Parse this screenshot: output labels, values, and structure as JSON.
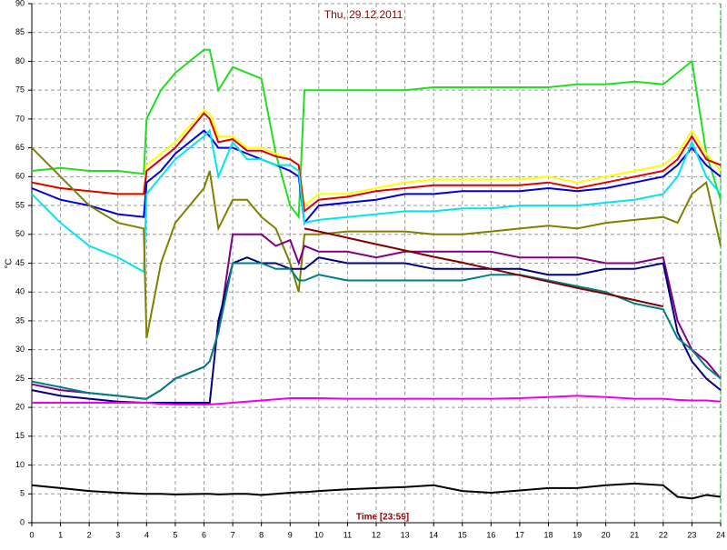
{
  "chart_data": {
    "type": "line",
    "title": "Thu, 29.12.2011",
    "x_label": "Time [23:59]",
    "y_label": "°C",
    "x": [
      0,
      1,
      2,
      3,
      3.9,
      4,
      4.5,
      5,
      6,
      6.2,
      6.5,
      7,
      7.5,
      8,
      8.5,
      9,
      9.3,
      9.5,
      10,
      11,
      12,
      13,
      14,
      15,
      16,
      17,
      18,
      19,
      20,
      21,
      22,
      22.5,
      23,
      23.5,
      24
    ],
    "series": [
      {
        "color": "#22dd22",
        "values": [
          61,
          61.5,
          61,
          61,
          60.5,
          70,
          75,
          78,
          82,
          82,
          75,
          79,
          78,
          77,
          64,
          55,
          53,
          75,
          75,
          75,
          75,
          75,
          75.5,
          75.5,
          75.5,
          75.5,
          75.5,
          76,
          76,
          76.5,
          76,
          78,
          80,
          64,
          56
        ]
      },
      {
        "color": "#ffff00",
        "values": [
          59,
          58,
          57.5,
          57,
          57,
          62,
          64,
          66,
          71.5,
          71,
          67,
          67,
          65,
          65,
          64,
          63,
          62,
          55,
          57,
          57,
          58,
          59,
          59.5,
          59.5,
          59.5,
          59.5,
          60,
          59,
          60,
          61,
          62,
          64,
          68,
          64,
          61
        ]
      },
      {
        "color": "#dd0000",
        "values": [
          59,
          58,
          57.5,
          57,
          57,
          61,
          63,
          65,
          71,
          70,
          66,
          66.5,
          64.5,
          64.5,
          63.5,
          63,
          62,
          54,
          56,
          56.5,
          57.5,
          58,
          58.5,
          58.5,
          58.5,
          58.5,
          59,
          58,
          59,
          60,
          61,
          63,
          67,
          63,
          62
        ]
      },
      {
        "color": "#0000dd",
        "values": [
          58,
          56,
          55,
          53.5,
          53,
          59,
          61,
          64,
          68,
          67,
          65,
          65,
          64,
          63,
          62,
          61,
          60,
          52,
          55,
          55.5,
          56,
          57,
          57,
          57.5,
          57.5,
          57.5,
          58,
          57.5,
          58,
          59,
          60,
          62,
          65,
          62,
          60
        ]
      },
      {
        "color": "#00e5ee",
        "values": [
          57,
          52,
          48,
          46,
          43.5,
          57,
          60,
          63,
          67,
          68,
          60,
          66,
          63,
          63,
          62,
          62,
          61,
          52,
          52.5,
          53,
          53.5,
          54,
          54,
          54.5,
          54.5,
          55,
          55,
          55,
          55.5,
          56,
          57,
          60,
          66,
          60,
          57
        ]
      },
      {
        "color": "#808000",
        "values": [
          65,
          60,
          55,
          52,
          51,
          32,
          45,
          52,
          58,
          61,
          51,
          56,
          56,
          53,
          51,
          45,
          40,
          50,
          50,
          50.5,
          50.5,
          50.5,
          50,
          50,
          50.5,
          51,
          51.5,
          51,
          52,
          52.5,
          53,
          52,
          57,
          59,
          48
        ]
      },
      {
        "color": "#800080",
        "values": [
          24,
          23,
          22.5,
          22,
          21.5,
          21.5,
          23,
          25,
          27,
          28,
          33,
          50,
          50,
          50,
          48,
          49,
          45,
          48,
          47,
          47,
          46,
          47,
          47,
          47,
          47,
          46,
          46,
          46,
          45,
          45,
          46,
          35,
          30,
          28,
          25
        ]
      },
      {
        "color": "#000080",
        "values": [
          23,
          22,
          21.5,
          21,
          20.8,
          20.8,
          20.8,
          20.8,
          20.8,
          20.8,
          35,
          45,
          46,
          45,
          45,
          44,
          44,
          44,
          46,
          45,
          45,
          45,
          44,
          44,
          44,
          44,
          43,
          43,
          44,
          44,
          45,
          33,
          28,
          25,
          23
        ]
      },
      {
        "color": "#008080",
        "values": [
          24.5,
          23.5,
          22.5,
          22,
          21.5,
          21.5,
          23,
          25,
          27,
          28,
          33,
          45,
          45,
          45,
          44,
          44,
          42,
          42,
          43,
          42,
          42,
          42,
          42,
          42,
          43,
          43,
          42,
          41,
          40,
          38,
          37,
          32,
          30,
          27,
          25
        ]
      },
      {
        "color": "#ee00ee",
        "values": [
          20.8,
          20.8,
          20.8,
          20.8,
          20.8,
          20.8,
          20.6,
          20.5,
          20.5,
          20.5,
          20.6,
          20.8,
          21,
          21.2,
          21.4,
          21.6,
          21.6,
          21.6,
          21.6,
          21.5,
          21.5,
          21.5,
          21.5,
          21.5,
          21.5,
          21.6,
          21.8,
          22,
          21.8,
          21.5,
          21.5,
          21.3,
          21.2,
          21.2,
          21
        ]
      },
      {
        "color": "#000000",
        "values": [
          6.5,
          6,
          5.5,
          5.2,
          5,
          5,
          5,
          4.9,
          5,
          5,
          4.9,
          5,
          5,
          4.8,
          5,
          5.2,
          5.3,
          5.3,
          5.5,
          5.8,
          6,
          6.2,
          6.5,
          5.5,
          5.2,
          5.6,
          6,
          6,
          6.5,
          6.8,
          6.5,
          4.5,
          4.2,
          4.8,
          4.5
        ]
      },
      {
        "color": "#800000",
        "values": [
          null,
          null,
          null,
          null,
          null,
          null,
          null,
          null,
          null,
          null,
          null,
          null,
          null,
          null,
          null,
          null,
          null,
          51,
          50.5,
          49.4,
          48.3,
          47.2,
          46.1,
          45.1,
          44,
          42.9,
          41.8,
          40.7,
          39.7,
          38.6,
          37.5,
          null,
          null,
          null,
          null
        ]
      }
    ],
    "xlim": [
      0,
      24
    ],
    "ylim": [
      0,
      90
    ],
    "xticks": [
      0,
      1,
      2,
      3,
      4,
      5,
      6,
      7,
      8,
      9,
      10,
      11,
      12,
      13,
      14,
      15,
      16,
      17,
      18,
      19,
      20,
      21,
      22,
      23,
      24
    ],
    "yticks": [
      0,
      5,
      10,
      15,
      20,
      25,
      30,
      35,
      40,
      45,
      50,
      55,
      60,
      65,
      70,
      75,
      80,
      85,
      90
    ],
    "grid": true
  }
}
